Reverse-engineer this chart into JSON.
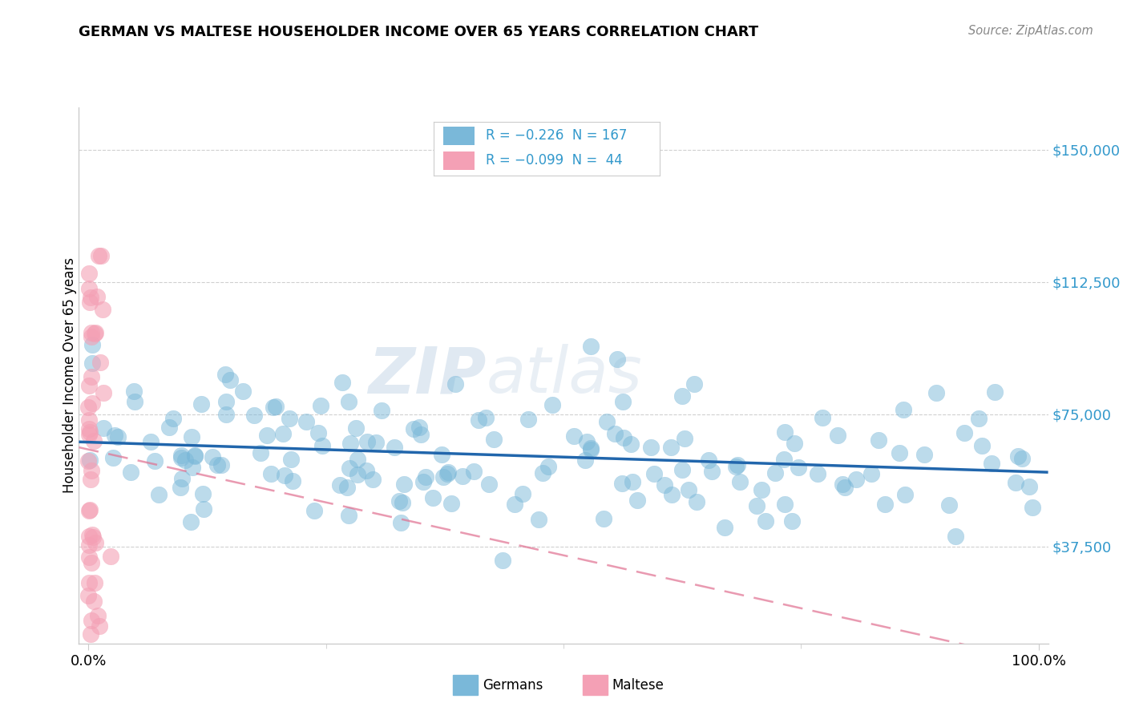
{
  "title": "GERMAN VS MALTESE HOUSEHOLDER INCOME OVER 65 YEARS CORRELATION CHART",
  "source": "Source: ZipAtlas.com",
  "ylabel": "Householder Income Over 65 years",
  "ytick_labels": [
    "$37,500",
    "$75,000",
    "$112,500",
    "$150,000"
  ],
  "ytick_values": [
    37500,
    75000,
    112500,
    150000
  ],
  "ylim": [
    10000,
    162000
  ],
  "xlim": [
    -0.01,
    1.01
  ],
  "german_R": -0.226,
  "german_N": 167,
  "maltese_R": -0.099,
  "maltese_N": 44,
  "german_color": "#7ab8d9",
  "maltese_color": "#f4a0b5",
  "german_line_color": "#2166ac",
  "maltese_line_color": "#e07090",
  "watermark_zip": "ZIP",
  "watermark_atlas": "atlas",
  "legend_german": "R = −0.226  N = 167",
  "legend_maltese": "R = −0.099  N =  44",
  "bottom_legend": [
    {
      "label": "Germans",
      "color": "#7ab8d9"
    },
    {
      "label": "Maltese",
      "color": "#f4a0b5"
    }
  ],
  "grid_color": "#d0d0d0",
  "axis_color": "#cccccc",
  "ytext_color": "#3399cc",
  "seed": 12345
}
